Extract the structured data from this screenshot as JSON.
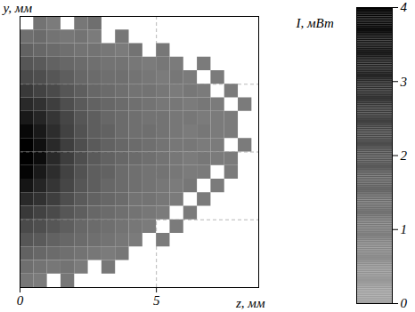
{
  "chart_data": {
    "type": "heatmap",
    "xlabel": "z, мм",
    "ylabel": "y, мм",
    "xlim": [
      0,
      8.75
    ],
    "xticks": [
      0,
      5
    ],
    "ylim": [
      -5,
      5
    ],
    "yticks": [
      -2.5,
      0,
      2.5
    ],
    "tick_labels": "x",
    "grid": true,
    "cells": {
      "x": [
        0,
        0.5,
        1,
        1.5,
        2,
        2.5,
        3,
        3.5,
        4,
        4.5,
        5,
        5.5,
        6,
        6.5,
        7,
        7.5,
        8
      ],
      "y": [
        4.5,
        4,
        3.5,
        3,
        2.5,
        2,
        1.5,
        1,
        0.5,
        0,
        -0.5,
        -1,
        -1.5,
        -2,
        -2.5,
        -3,
        -3.5,
        -4,
        -4.5,
        -5
      ],
      "values": [
        [
          null,
          1.2,
          1.0,
          null,
          1.1,
          1.3,
          null,
          null,
          null,
          null,
          null,
          null,
          null,
          null,
          null,
          null,
          null
        ],
        [
          1.3,
          1.4,
          1.2,
          1.1,
          1.2,
          1.0,
          null,
          1.1,
          null,
          null,
          null,
          null,
          null,
          null,
          null,
          null,
          null
        ],
        [
          1.6,
          1.5,
          1.4,
          1.3,
          1.2,
          1.2,
          1.1,
          1.0,
          1.2,
          null,
          1.1,
          null,
          null,
          null,
          null,
          null,
          null
        ],
        [
          1.9,
          1.8,
          1.6,
          1.5,
          1.4,
          1.3,
          1.2,
          1.2,
          1.1,
          1.0,
          1.1,
          1.0,
          null,
          1.0,
          null,
          null,
          null
        ],
        [
          2.2,
          2.1,
          1.9,
          1.7,
          1.5,
          1.4,
          1.3,
          1.3,
          1.2,
          1.1,
          1.0,
          1.1,
          1.0,
          null,
          1.0,
          null,
          null
        ],
        [
          2.6,
          2.4,
          2.2,
          1.9,
          1.7,
          1.5,
          1.4,
          1.3,
          1.2,
          1.2,
          1.1,
          1.0,
          1.1,
          1.0,
          null,
          1.0,
          null
        ],
        [
          3.0,
          2.8,
          2.5,
          2.1,
          1.8,
          1.6,
          1.5,
          1.4,
          1.3,
          1.2,
          1.1,
          1.1,
          1.0,
          1.1,
          1.0,
          null,
          1.0
        ],
        [
          3.4,
          3.1,
          2.7,
          2.3,
          1.9,
          1.7,
          1.5,
          1.4,
          1.3,
          1.2,
          1.2,
          1.1,
          1.1,
          1.0,
          1.0,
          1.0,
          null
        ],
        [
          3.8,
          3.4,
          2.9,
          2.4,
          2.0,
          1.7,
          1.6,
          1.4,
          1.3,
          1.3,
          1.2,
          1.1,
          1.0,
          1.1,
          1.0,
          1.0,
          null
        ],
        [
          4.2,
          3.6,
          3.0,
          2.5,
          2.1,
          1.8,
          1.6,
          1.5,
          1.4,
          1.3,
          1.2,
          1.1,
          1.1,
          1.0,
          1.0,
          null,
          1.0
        ],
        [
          4.3,
          3.7,
          3.0,
          2.5,
          2.1,
          1.8,
          1.6,
          1.5,
          1.4,
          1.3,
          1.2,
          1.1,
          1.0,
          1.1,
          1.0,
          1.0,
          null
        ],
        [
          3.9,
          3.4,
          2.9,
          2.4,
          2.0,
          1.7,
          1.6,
          1.4,
          1.3,
          1.2,
          1.2,
          1.1,
          1.0,
          1.0,
          null,
          1.0,
          null
        ],
        [
          3.5,
          3.1,
          2.7,
          2.3,
          1.9,
          1.7,
          1.5,
          1.4,
          1.3,
          1.2,
          1.1,
          1.0,
          1.1,
          null,
          1.0,
          null,
          null
        ],
        [
          3.0,
          2.8,
          2.5,
          2.1,
          1.8,
          1.6,
          1.5,
          1.4,
          1.2,
          1.2,
          1.1,
          1.0,
          null,
          1.0,
          null,
          null,
          null
        ],
        [
          2.6,
          2.4,
          2.2,
          1.9,
          1.7,
          1.5,
          1.4,
          1.3,
          1.2,
          1.1,
          1.0,
          null,
          1.0,
          null,
          null,
          null,
          null
        ],
        [
          2.2,
          2.1,
          1.9,
          1.7,
          1.5,
          1.4,
          1.3,
          1.2,
          1.1,
          1.0,
          null,
          1.0,
          null,
          null,
          null,
          null,
          null
        ],
        [
          1.9,
          1.8,
          1.6,
          1.5,
          1.4,
          1.3,
          1.2,
          1.1,
          1.0,
          null,
          1.0,
          null,
          null,
          null,
          null,
          null,
          null
        ],
        [
          1.6,
          1.5,
          1.4,
          1.3,
          1.2,
          1.1,
          1.0,
          1.1,
          null,
          null,
          null,
          null,
          null,
          null,
          null,
          null,
          null
        ],
        [
          1.3,
          1.2,
          1.1,
          1.2,
          1.0,
          null,
          1.1,
          null,
          null,
          null,
          null,
          null,
          null,
          null,
          null,
          null,
          null
        ],
        [
          1.1,
          1.0,
          null,
          1.1,
          null,
          null,
          null,
          null,
          null,
          null,
          null,
          null,
          null,
          null,
          null,
          null,
          null
        ]
      ]
    },
    "colorbar": {
      "label": "I, мВт",
      "range": [
        0,
        4
      ],
      "ticks": [
        0,
        1,
        2,
        3,
        4
      ]
    }
  }
}
